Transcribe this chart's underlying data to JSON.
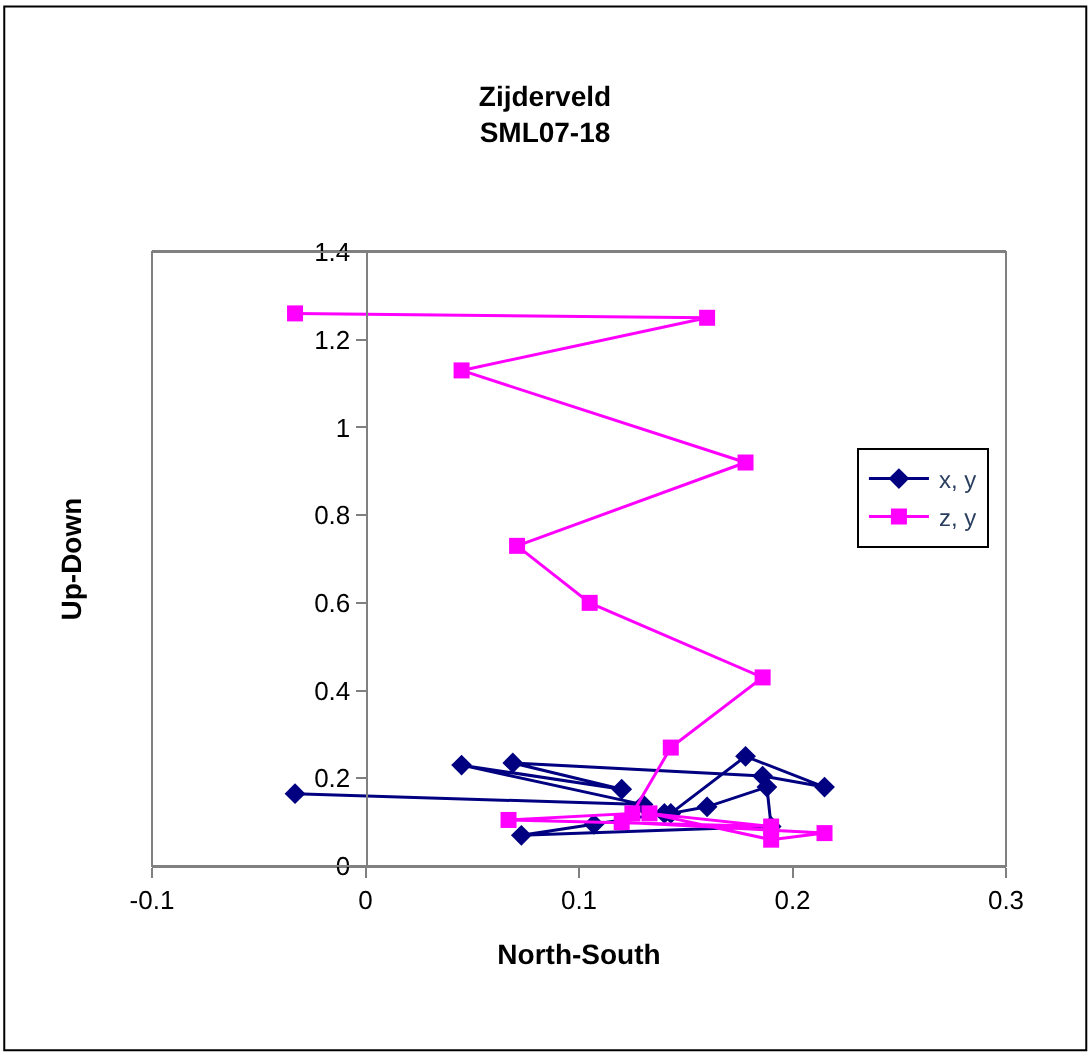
{
  "chart_data": {
    "type": "line",
    "title": "Zijderveld\nSML07-18",
    "xlabel": "North-South",
    "ylabel": "Up-Down",
    "xlim": [
      -0.1,
      0.3
    ],
    "xticks": [
      -0.1,
      0,
      0.1,
      0.2,
      0.3
    ],
    "ylim": [
      0,
      1.4
    ],
    "yticks": [
      0,
      0.2,
      0.4,
      0.6,
      0.8,
      1,
      1.2,
      1.4
    ],
    "legend": "right",
    "series": [
      {
        "name": "x, y",
        "color": "#000080",
        "marker": "diamond",
        "x": [
          -0.033,
          0.13,
          0.045,
          0.12,
          0.069,
          0.186,
          0.215,
          0.178,
          0.143,
          0.16,
          0.188,
          0.19,
          0.073,
          0.107,
          0.14
        ],
        "values": [
          0.165,
          0.14,
          0.23,
          0.175,
          0.235,
          0.205,
          0.18,
          0.25,
          0.12,
          0.135,
          0.18,
          0.09,
          0.07,
          0.095,
          0.12
        ]
      },
      {
        "name": "z, y",
        "color": "#ff00ff",
        "marker": "square",
        "x": [
          -0.033,
          0.16,
          0.045,
          0.178,
          0.071,
          0.105,
          0.186,
          0.143,
          0.125,
          0.067,
          0.19,
          0.133,
          0.19,
          0.215,
          0.12
        ],
        "values": [
          1.26,
          1.25,
          1.13,
          0.92,
          0.73,
          0.6,
          0.43,
          0.27,
          0.12,
          0.105,
          0.09,
          0.12,
          0.06,
          0.075,
          0.1
        ]
      }
    ]
  }
}
